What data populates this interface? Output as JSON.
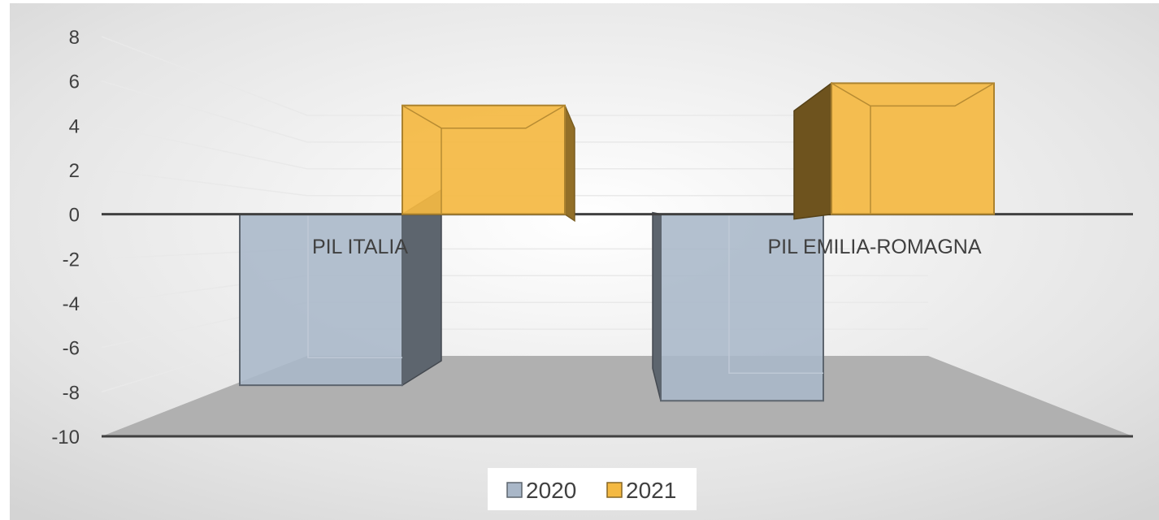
{
  "chart_data": {
    "type": "bar",
    "categories": [
      "PIL ITALIA",
      "PIL EMILIA-ROMAGNA"
    ],
    "series": [
      {
        "name": "2020",
        "values": [
          -7.7,
          -8.4
        ],
        "color": "#a9b7c8"
      },
      {
        "name": "2021",
        "values": [
          4.9,
          5.9
        ],
        "color": "#f4b942"
      }
    ],
    "y_ticks": [
      "8",
      "6",
      "4",
      "2",
      "0",
      "-2",
      "-4",
      "-6",
      "-8",
      "-10"
    ],
    "ylim": [
      -10,
      8
    ],
    "grid": true,
    "legend_position": "bottom",
    "style": "3d-clustered-column"
  }
}
